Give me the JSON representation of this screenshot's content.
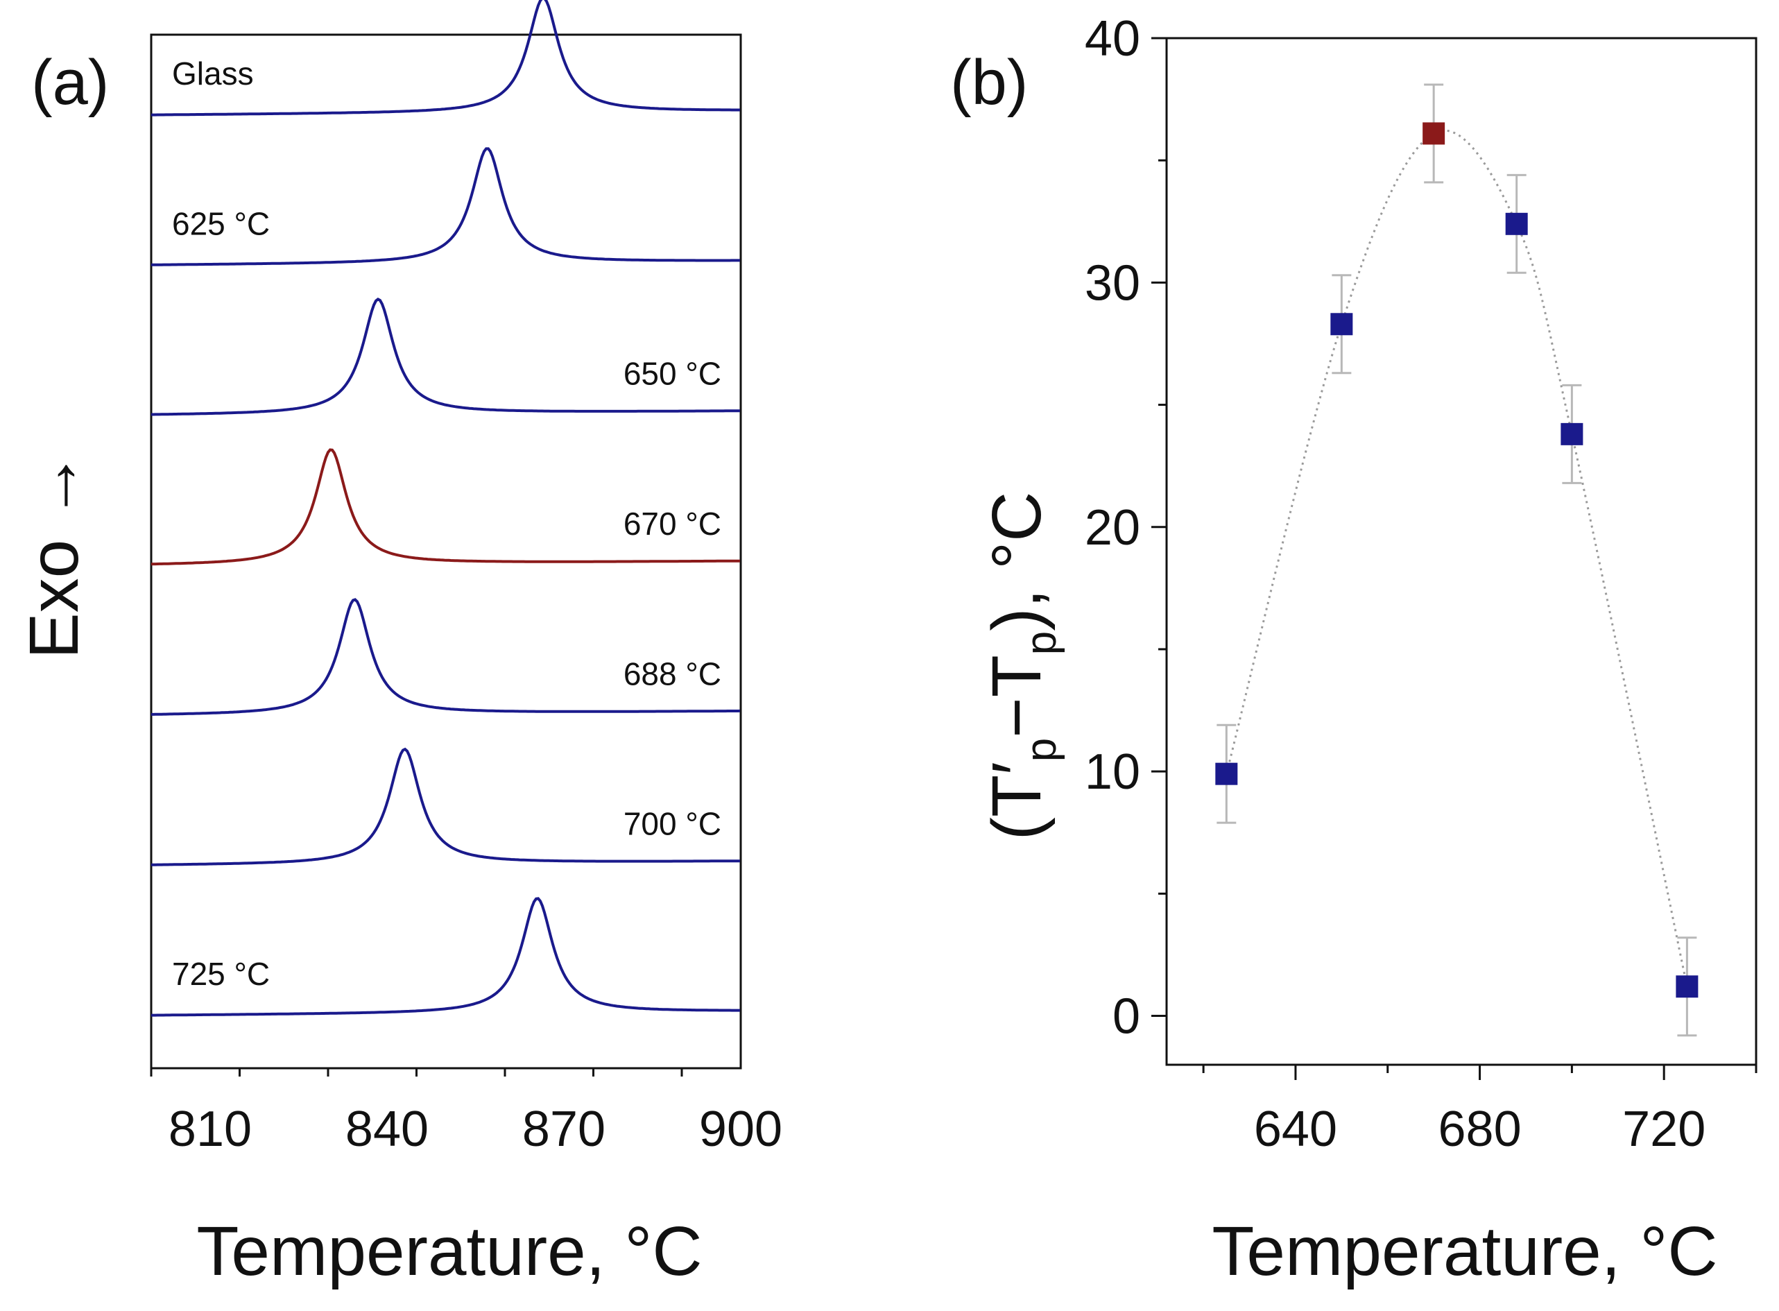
{
  "panels": [
    {
      "label": "(a)",
      "xlabel": "Temperature, °C",
      "ylabel": "Exo →"
    },
    {
      "label": "(b)",
      "xlabel": "Temperature, °C",
      "ylabel": "(T′p−Tp), °C"
    }
  ],
  "chart_data": [
    {
      "type": "line",
      "panel": "(a)",
      "xlabel": "Temperature, °C",
      "ylabel": "Exo →",
      "xlim": [
        800,
        900
      ],
      "xticks": [
        810,
        840,
        870,
        900
      ],
      "y_axis_values_shown": false,
      "colors": {
        "default": "#1a1a8c",
        "highlight": "#8b1a1a"
      },
      "series": [
        {
          "name": "Glass",
          "peak_x": 866.5,
          "highlight": false
        },
        {
          "name": "625 °C",
          "peak_x": 857.0,
          "highlight": false
        },
        {
          "name": "650 °C",
          "peak_x": 838.5,
          "highlight": false
        },
        {
          "name": "670 °C",
          "peak_x": 830.5,
          "highlight": true
        },
        {
          "name": "688 °C",
          "peak_x": 834.5,
          "highlight": false
        },
        {
          "name": "700 °C",
          "peak_x": 843.0,
          "highlight": false
        },
        {
          "name": "725 °C",
          "peak_x": 865.5,
          "highlight": false
        }
      ]
    },
    {
      "type": "scatter",
      "panel": "(b)",
      "xlabel": "Temperature, °C",
      "ylabel": "(T′p−Tp), °C",
      "xlim": [
        612,
        740
      ],
      "ylim": [
        -2,
        40
      ],
      "xticks": [
        640,
        680,
        720
      ],
      "yticks": [
        0,
        10,
        20,
        30,
        40
      ],
      "error_bars": true,
      "fit_curve": "dotted",
      "colors": {
        "point": "#1a1a8c",
        "highlight": "#8b1a1a",
        "errorbar": "#b8b8b8",
        "fit": "#9a9a9a"
      },
      "points": [
        {
          "x": 625,
          "y": 9.9,
          "err": 2.0,
          "highlight": false
        },
        {
          "x": 650,
          "y": 28.3,
          "err": 2.0,
          "highlight": false
        },
        {
          "x": 670,
          "y": 36.1,
          "err": 2.0,
          "highlight": true
        },
        {
          "x": 688,
          "y": 32.4,
          "err": 2.0,
          "highlight": false
        },
        {
          "x": 700,
          "y": 23.8,
          "err": 2.0,
          "highlight": false
        },
        {
          "x": 725,
          "y": 1.2,
          "err": 2.0,
          "highlight": false
        }
      ]
    }
  ]
}
